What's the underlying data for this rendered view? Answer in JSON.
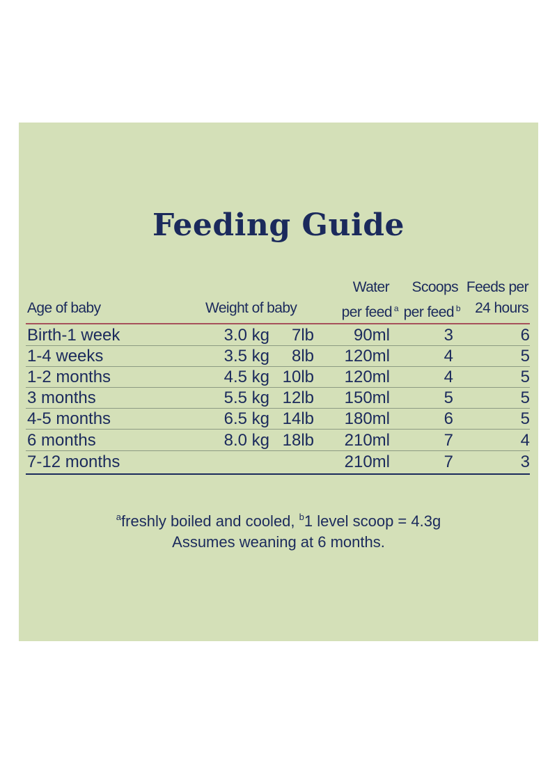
{
  "title": "Feeding Guide",
  "headers": {
    "age": "Age of baby",
    "weight": "Weight of baby",
    "water_line1": "Water",
    "water_line2": "per feed",
    "water_sup": "a",
    "scoops_line1": "Scoops",
    "scoops_line2": "per feed",
    "scoops_sup": "b",
    "feeds_line1": "Feeds per",
    "feeds_line2": "24 hours"
  },
  "rows": [
    {
      "age": "Birth-1 week",
      "kg": "3.0 kg",
      "lb": "7lb",
      "water": "90ml",
      "scoops": "3",
      "feeds": "6"
    },
    {
      "age": "1-4 weeks",
      "kg": "3.5 kg",
      "lb": "8lb",
      "water": "120ml",
      "scoops": "4",
      "feeds": "5"
    },
    {
      "age": "1-2 months",
      "kg": "4.5 kg",
      "lb": "10lb",
      "water": "120ml",
      "scoops": "4",
      "feeds": "5"
    },
    {
      "age": "3 months",
      "kg": "5.5 kg",
      "lb": "12lb",
      "water": "150ml",
      "scoops": "5",
      "feeds": "5"
    },
    {
      "age": "4-5 months",
      "kg": "6.5 kg",
      "lb": "14lb",
      "water": "180ml",
      "scoops": "6",
      "feeds": "5"
    },
    {
      "age": "6 months",
      "kg": "8.0 kg",
      "lb": "18lb",
      "water": "210ml",
      "scoops": "7",
      "feeds": "4"
    },
    {
      "age": "7-12 months",
      "kg": "",
      "lb": "",
      "water": "210ml",
      "scoops": "7",
      "feeds": "3"
    }
  ],
  "footnotes": {
    "sup_a": "a",
    "note_a": "freshly boiled and cooled, ",
    "sup_b": "b",
    "note_b": "1 level scoop = 4.3g",
    "weaning": "Assumes weaning at 6 months."
  },
  "colors": {
    "panel_background": "#d4e0b8",
    "text": "#1b2a5c",
    "header_rule": "#a6515b",
    "bottom_rule": "#1b2a5c"
  }
}
